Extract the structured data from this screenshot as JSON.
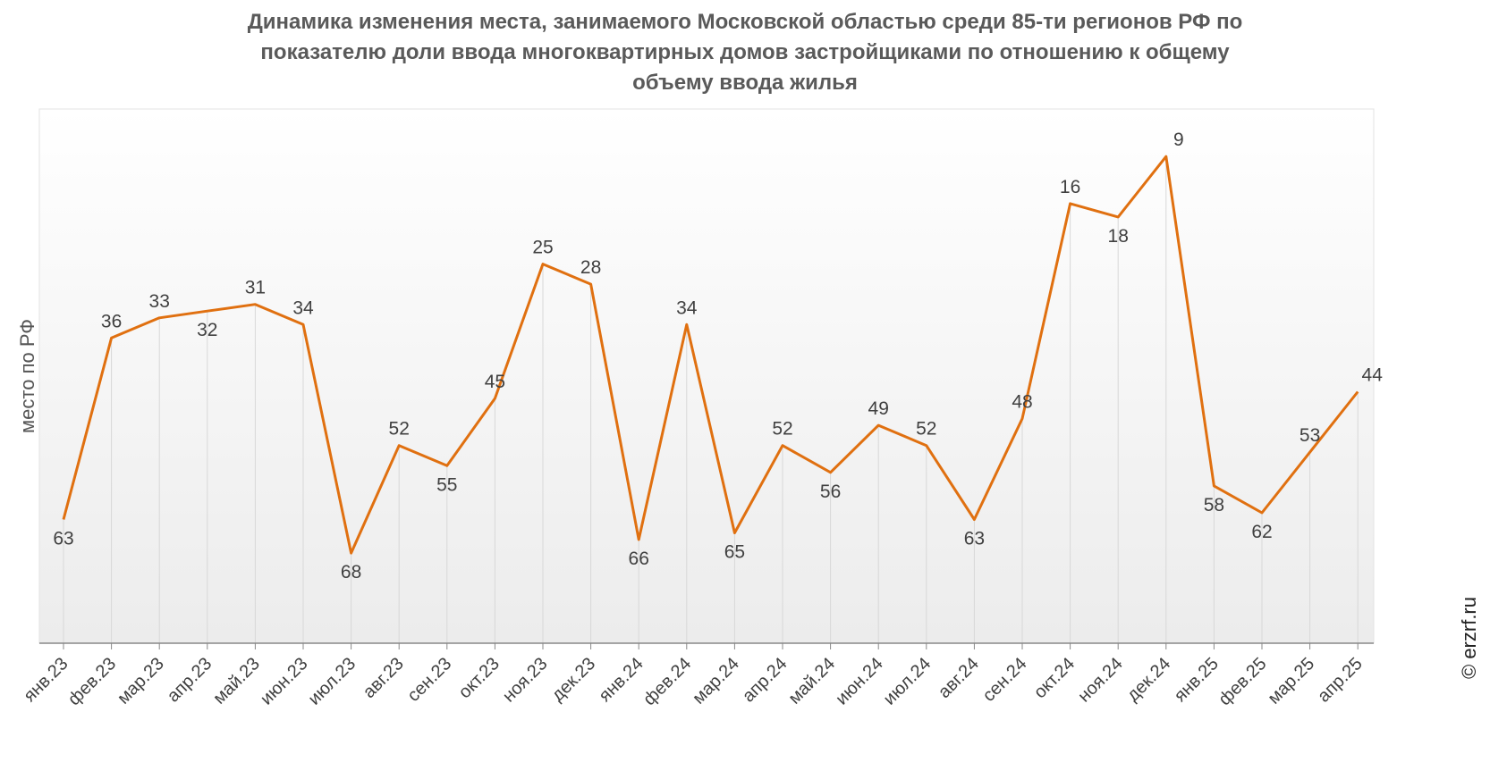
{
  "chart_data": {
    "type": "line",
    "title_lines": [
      "Динамика изменения места, занимаемого Московской областью среди 85-ти регионов РФ по",
      "показателю доли ввода многоквартирных домов застройщиками по отношению к общему",
      "объему ввода жилья"
    ],
    "ylabel": "место по РФ",
    "categories": [
      "янв.23",
      "фев.23",
      "мар.23",
      "апр.23",
      "май.23",
      "июн.23",
      "июл.23",
      "авг.23",
      "сен.23",
      "окт.23",
      "ноя.23",
      "дек.23",
      "янв.24",
      "фев.24",
      "мар.24",
      "апр.24",
      "май.24",
      "июн.24",
      "июл.24",
      "авг.24",
      "сен.24",
      "окт.24",
      "ноя.24",
      "дек.24",
      "янв.25",
      "фев.25",
      "мар.25",
      "апр.25"
    ],
    "values": [
      63,
      36,
      33,
      32,
      31,
      34,
      68,
      52,
      55,
      45,
      25,
      28,
      66,
      34,
      65,
      52,
      56,
      49,
      52,
      63,
      48,
      16,
      18,
      9,
      58,
      62,
      53,
      44
    ],
    "y_reversed": true,
    "ylim": [
      1,
      85
    ],
    "line_color": "#E07010",
    "grid": false
  },
  "credit": "© erzrf.ru"
}
